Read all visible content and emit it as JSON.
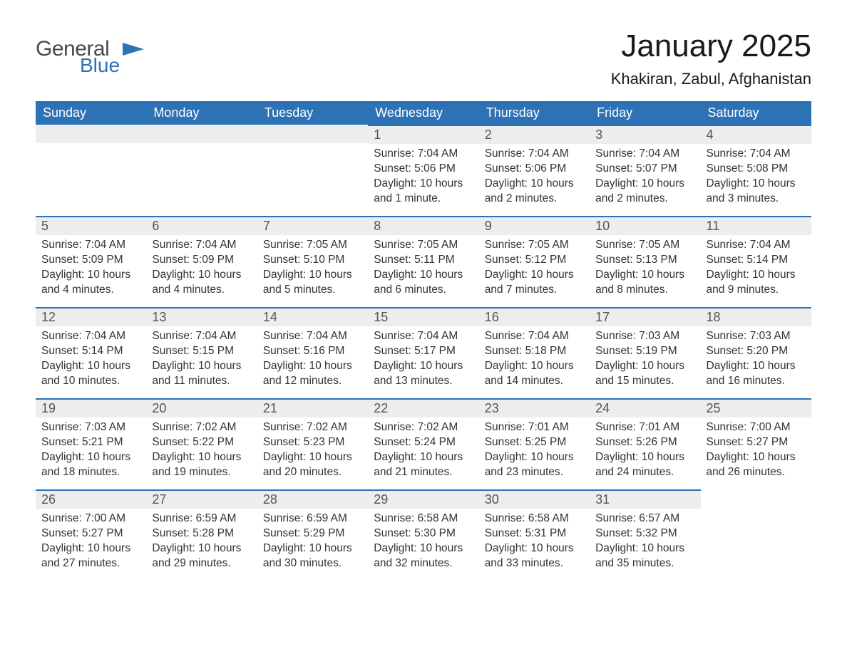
{
  "brand": {
    "part1": "General",
    "part2": "Blue",
    "accent_color": "#2d72b5"
  },
  "title": "January 2025",
  "location": "Khakiran, Zabul, Afghanistan",
  "colors": {
    "header_bg": "#2d72b5",
    "header_text": "#ffffff",
    "daynum_bg": "#ededed",
    "daynum_border": "#2d72b5",
    "body_text": "#333333",
    "page_bg": "#ffffff"
  },
  "weekdays": [
    "Sunday",
    "Monday",
    "Tuesday",
    "Wednesday",
    "Thursday",
    "Friday",
    "Saturday"
  ],
  "weeks": [
    [
      null,
      null,
      null,
      {
        "n": "1",
        "sunrise": "7:04 AM",
        "sunset": "5:06 PM",
        "daylight": "10 hours and 1 minute."
      },
      {
        "n": "2",
        "sunrise": "7:04 AM",
        "sunset": "5:06 PM",
        "daylight": "10 hours and 2 minutes."
      },
      {
        "n": "3",
        "sunrise": "7:04 AM",
        "sunset": "5:07 PM",
        "daylight": "10 hours and 2 minutes."
      },
      {
        "n": "4",
        "sunrise": "7:04 AM",
        "sunset": "5:08 PM",
        "daylight": "10 hours and 3 minutes."
      }
    ],
    [
      {
        "n": "5",
        "sunrise": "7:04 AM",
        "sunset": "5:09 PM",
        "daylight": "10 hours and 4 minutes."
      },
      {
        "n": "6",
        "sunrise": "7:04 AM",
        "sunset": "5:09 PM",
        "daylight": "10 hours and 4 minutes."
      },
      {
        "n": "7",
        "sunrise": "7:05 AM",
        "sunset": "5:10 PM",
        "daylight": "10 hours and 5 minutes."
      },
      {
        "n": "8",
        "sunrise": "7:05 AM",
        "sunset": "5:11 PM",
        "daylight": "10 hours and 6 minutes."
      },
      {
        "n": "9",
        "sunrise": "7:05 AM",
        "sunset": "5:12 PM",
        "daylight": "10 hours and 7 minutes."
      },
      {
        "n": "10",
        "sunrise": "7:05 AM",
        "sunset": "5:13 PM",
        "daylight": "10 hours and 8 minutes."
      },
      {
        "n": "11",
        "sunrise": "7:04 AM",
        "sunset": "5:14 PM",
        "daylight": "10 hours and 9 minutes."
      }
    ],
    [
      {
        "n": "12",
        "sunrise": "7:04 AM",
        "sunset": "5:14 PM",
        "daylight": "10 hours and 10 minutes."
      },
      {
        "n": "13",
        "sunrise": "7:04 AM",
        "sunset": "5:15 PM",
        "daylight": "10 hours and 11 minutes."
      },
      {
        "n": "14",
        "sunrise": "7:04 AM",
        "sunset": "5:16 PM",
        "daylight": "10 hours and 12 minutes."
      },
      {
        "n": "15",
        "sunrise": "7:04 AM",
        "sunset": "5:17 PM",
        "daylight": "10 hours and 13 minutes."
      },
      {
        "n": "16",
        "sunrise": "7:04 AM",
        "sunset": "5:18 PM",
        "daylight": "10 hours and 14 minutes."
      },
      {
        "n": "17",
        "sunrise": "7:03 AM",
        "sunset": "5:19 PM",
        "daylight": "10 hours and 15 minutes."
      },
      {
        "n": "18",
        "sunrise": "7:03 AM",
        "sunset": "5:20 PM",
        "daylight": "10 hours and 16 minutes."
      }
    ],
    [
      {
        "n": "19",
        "sunrise": "7:03 AM",
        "sunset": "5:21 PM",
        "daylight": "10 hours and 18 minutes."
      },
      {
        "n": "20",
        "sunrise": "7:02 AM",
        "sunset": "5:22 PM",
        "daylight": "10 hours and 19 minutes."
      },
      {
        "n": "21",
        "sunrise": "7:02 AM",
        "sunset": "5:23 PM",
        "daylight": "10 hours and 20 minutes."
      },
      {
        "n": "22",
        "sunrise": "7:02 AM",
        "sunset": "5:24 PM",
        "daylight": "10 hours and 21 minutes."
      },
      {
        "n": "23",
        "sunrise": "7:01 AM",
        "sunset": "5:25 PM",
        "daylight": "10 hours and 23 minutes."
      },
      {
        "n": "24",
        "sunrise": "7:01 AM",
        "sunset": "5:26 PM",
        "daylight": "10 hours and 24 minutes."
      },
      {
        "n": "25",
        "sunrise": "7:00 AM",
        "sunset": "5:27 PM",
        "daylight": "10 hours and 26 minutes."
      }
    ],
    [
      {
        "n": "26",
        "sunrise": "7:00 AM",
        "sunset": "5:27 PM",
        "daylight": "10 hours and 27 minutes."
      },
      {
        "n": "27",
        "sunrise": "6:59 AM",
        "sunset": "5:28 PM",
        "daylight": "10 hours and 29 minutes."
      },
      {
        "n": "28",
        "sunrise": "6:59 AM",
        "sunset": "5:29 PM",
        "daylight": "10 hours and 30 minutes."
      },
      {
        "n": "29",
        "sunrise": "6:58 AM",
        "sunset": "5:30 PM",
        "daylight": "10 hours and 32 minutes."
      },
      {
        "n": "30",
        "sunrise": "6:58 AM",
        "sunset": "5:31 PM",
        "daylight": "10 hours and 33 minutes."
      },
      {
        "n": "31",
        "sunrise": "6:57 AM",
        "sunset": "5:32 PM",
        "daylight": "10 hours and 35 minutes."
      },
      null
    ]
  ],
  "labels": {
    "sunrise": "Sunrise: ",
    "sunset": "Sunset: ",
    "daylight": "Daylight: "
  }
}
